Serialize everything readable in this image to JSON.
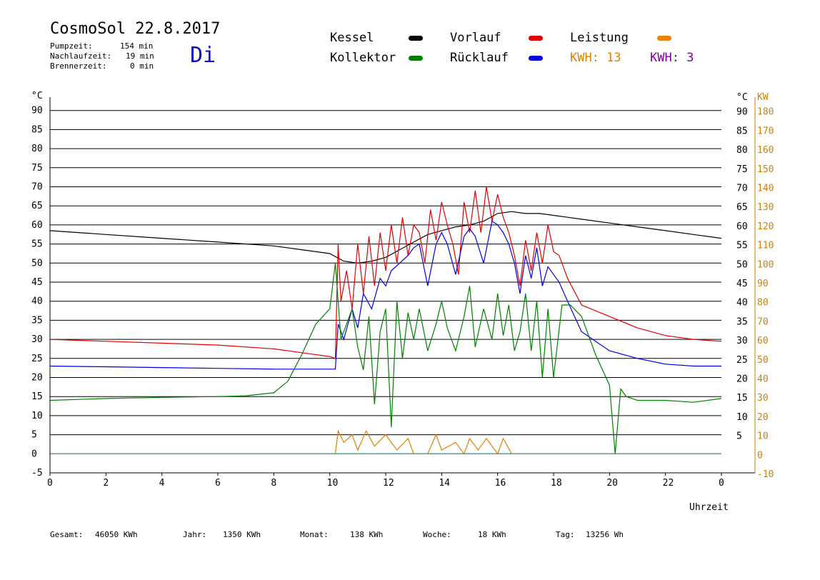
{
  "header": {
    "title": "CosmoSol 22.8.2017",
    "day": "Di",
    "stats": [
      {
        "label": "Pumpzeit:",
        "value": "154 min"
      },
      {
        "label": "Nachlaufzeit:",
        "value": "19 min"
      },
      {
        "label": "Brennerzeit:",
        "value": "0 min"
      }
    ]
  },
  "legend": {
    "items": [
      {
        "label": "Kessel",
        "color": "#000000"
      },
      {
        "label": "Vorlauf",
        "color": "#e00000"
      },
      {
        "label": "Leistung",
        "color": "#f08000"
      },
      {
        "label": "Kollektor",
        "color": "#008000"
      },
      {
        "label": "Rücklauf",
        "color": "#0000e0"
      }
    ],
    "kwh1": "KWH: 13",
    "kwh1_color": "#e08000",
    "kwh2": "KWH: 3",
    "kwh2_color": "#8000a0"
  },
  "footer": {
    "gesamt_label": "Gesamt:",
    "gesamt_value": "46050 KWh",
    "jahr_label": "Jahr:",
    "jahr_value": "1350 KWh",
    "monat_label": "Monat:",
    "monat_value": "138 KWh",
    "woche_label": "Woche:",
    "woche_value": "18 KWh",
    "tag_label": "Tag:",
    "tag_value": "13256 Wh"
  },
  "chart_data": {
    "type": "line",
    "xlabel": "Uhrzeit",
    "ylabel_left": "°C",
    "ylabel_right_temp": "°C",
    "ylabel_right_power": "KW",
    "xlim": [
      0,
      24
    ],
    "ylim": [
      -5,
      95
    ],
    "x_ticks": [
      "0",
      "2",
      "4",
      "6",
      "8",
      "10",
      "12",
      "14",
      "16",
      "18",
      "20",
      "22",
      "0"
    ],
    "y_ticks_left": [
      "-5",
      "0",
      "5",
      "10",
      "15",
      "20",
      "25",
      "30",
      "35",
      "40",
      "45",
      "50",
      "55",
      "60",
      "65",
      "70",
      "75",
      "80",
      "85",
      "90"
    ],
    "y_ticks_right_temp": [
      "5",
      "10",
      "15",
      "20",
      "25",
      "30",
      "35",
      "40",
      "45",
      "50",
      "55",
      "60",
      "65",
      "70",
      "75",
      "80",
      "85",
      "90"
    ],
    "y_ticks_right_power": [
      "-10",
      "0",
      "10",
      "20",
      "30",
      "40",
      "50",
      "60",
      "70",
      "80",
      "90",
      "100",
      "110",
      "120",
      "130",
      "140",
      "150",
      "160",
      "170",
      "180"
    ],
    "grid": true,
    "series": [
      {
        "name": "Kessel",
        "color": "#000000",
        "x": [
          0,
          2,
          4,
          6,
          8,
          9,
          10,
          10.5,
          11,
          11.5,
          12,
          12.5,
          13,
          13.5,
          14,
          14.5,
          15,
          15.5,
          16,
          16.5,
          17,
          17.5,
          18,
          18.5,
          19,
          20,
          21,
          22,
          23,
          24
        ],
        "y": [
          58.5,
          57.5,
          56.5,
          55.5,
          54.5,
          53.5,
          52.5,
          50.5,
          50,
          50.5,
          51.5,
          53.5,
          55.5,
          57.5,
          58.5,
          59.5,
          60,
          61,
          63,
          63.5,
          63,
          63,
          62.5,
          62,
          61.5,
          60.5,
          59.5,
          58.5,
          57.5,
          56.5
        ]
      },
      {
        "name": "Vorlauf",
        "color": "#e00000",
        "x": [
          0,
          2,
          4,
          6,
          8,
          9,
          10,
          10.2,
          10.3,
          10.4,
          10.6,
          10.8,
          11,
          11.2,
          11.4,
          11.6,
          11.8,
          12,
          12.2,
          12.4,
          12.6,
          12.8,
          13,
          13.2,
          13.4,
          13.6,
          13.8,
          14,
          14.2,
          14.4,
          14.6,
          14.8,
          15,
          15.2,
          15.4,
          15.6,
          15.8,
          16,
          16.2,
          16.4,
          16.6,
          16.8,
          17,
          17.2,
          17.4,
          17.6,
          17.8,
          18,
          18.2,
          18.5,
          19,
          20,
          21,
          22,
          23,
          24
        ],
        "y": [
          30,
          29.5,
          29,
          28.5,
          27.5,
          26.5,
          25.5,
          25,
          55,
          40,
          48,
          38,
          55,
          42,
          57,
          44,
          58,
          48,
          60,
          50,
          62,
          52,
          60,
          58,
          50,
          64,
          56,
          66,
          60,
          55,
          47,
          66,
          58,
          69,
          58,
          70,
          61,
          68,
          62,
          58,
          52,
          44,
          56,
          48,
          58,
          50,
          60,
          53,
          52,
          46,
          39,
          36,
          33,
          31,
          30,
          29.5
        ]
      },
      {
        "name": "Rücklauf",
        "color": "#0000e0",
        "x": [
          0,
          2,
          4,
          6,
          8,
          9,
          10,
          10.2,
          10.3,
          10.5,
          10.8,
          11,
          11.2,
          11.5,
          11.8,
          12,
          12.2,
          12.5,
          12.8,
          13,
          13.2,
          13.5,
          13.8,
          14,
          14.2,
          14.5,
          14.8,
          15,
          15.2,
          15.5,
          15.8,
          16,
          16.2,
          16.4,
          16.6,
          16.8,
          17,
          17.2,
          17.4,
          17.6,
          17.8,
          18,
          18.2,
          18.5,
          19,
          20,
          21,
          22,
          23,
          24
        ],
        "y": [
          23,
          22.8,
          22.6,
          22.4,
          22.2,
          22.2,
          22.2,
          22.2,
          34,
          30,
          38,
          33,
          42,
          38,
          46,
          44,
          48,
          50,
          52,
          54,
          55,
          44,
          55,
          58,
          55,
          47,
          57,
          59,
          57,
          50,
          61,
          60,
          58,
          55,
          50,
          42,
          52,
          46,
          54,
          44,
          49,
          47,
          45,
          40,
          32,
          27,
          25,
          23.5,
          23,
          23
        ]
      },
      {
        "name": "Kollektor",
        "color": "#008000",
        "x": [
          0,
          2,
          4,
          6,
          7,
          8,
          8.5,
          9,
          9.5,
          10,
          10.2,
          10.4,
          10.8,
          11,
          11.2,
          11.4,
          11.6,
          11.8,
          12,
          12.2,
          12.4,
          12.6,
          12.8,
          13,
          13.2,
          13.5,
          13.8,
          14,
          14.2,
          14.5,
          14.8,
          15,
          15.2,
          15.5,
          15.8,
          16,
          16.2,
          16.4,
          16.6,
          16.8,
          17,
          17.2,
          17.4,
          17.6,
          17.8,
          18,
          18.3,
          18.6,
          19,
          19.5,
          20,
          20.2,
          20.4,
          20.6,
          21,
          22,
          23,
          24
        ],
        "y": [
          14,
          14.5,
          14.8,
          15,
          15.2,
          16,
          19,
          26,
          34,
          38,
          50,
          30,
          38,
          28,
          22,
          36,
          13,
          32,
          38,
          7,
          40,
          25,
          37,
          30,
          38,
          27,
          34,
          40,
          33,
          27,
          36,
          44,
          28,
          38,
          30,
          42,
          31,
          39,
          27,
          32,
          42,
          27,
          40,
          20,
          38,
          20,
          39,
          39,
          36,
          26,
          18,
          0,
          17,
          15,
          14,
          14,
          13.5,
          14.5
        ]
      },
      {
        "name": "Leistung",
        "color": "#e08000",
        "x": [
          0,
          10.2,
          10.3,
          10.5,
          10.8,
          11,
          11.3,
          11.6,
          12,
          12.4,
          12.8,
          13,
          13.2,
          13.5,
          13.8,
          14,
          14.5,
          14.8,
          15,
          15.3,
          15.6,
          16,
          16.2,
          16.5,
          17,
          17.3,
          17.6,
          18,
          18.2,
          24
        ],
        "y": [
          0,
          0,
          6,
          3,
          5,
          1,
          6,
          2,
          5,
          1,
          4,
          0,
          0,
          0,
          5,
          1,
          3,
          0,
          4,
          1,
          4,
          0,
          4,
          0,
          0,
          0,
          0,
          0,
          0,
          0
        ]
      },
      {
        "name": "Pumpe",
        "color": "#00c0c0",
        "x": [
          0,
          24
        ],
        "y": [
          0,
          0
        ]
      }
    ]
  }
}
